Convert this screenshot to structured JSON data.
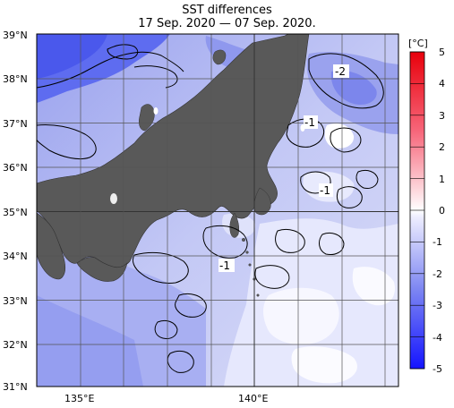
{
  "title": {
    "line1": "SST differences",
    "line2": "17 Sep. 2020 — 07 Sep. 2020."
  },
  "axes": {
    "lat_labels": [
      "39°N",
      "38°N",
      "37°N",
      "36°N",
      "35°N",
      "34°N",
      "33°N",
      "32°N",
      "31°N"
    ],
    "lon_labels": [
      "135°E",
      "140°E"
    ],
    "lat_range": [
      31,
      39
    ],
    "lon_range": [
      133.8,
      144.0
    ],
    "grid": true
  },
  "contour_labels": [
    "-2",
    "-1",
    "-1",
    "-1"
  ],
  "colorbar": {
    "unit": "[°C]",
    "ticks": [
      "5",
      "4",
      "3",
      "2",
      "1",
      "0",
      "-1",
      "-2",
      "-3",
      "-4",
      "-5"
    ],
    "range": [
      -5,
      5
    ],
    "colors": {
      "warm_max": "#e8000b",
      "warm_min": "#fff0f0",
      "cool_min": "#e8e8ff",
      "cool_max": "#1a1aff"
    }
  },
  "colors": {
    "land": "#5a5a5a",
    "sea_base": "#c7cbf5",
    "near_zero": "#f4f4ff",
    "cold_core": "#5a6af0"
  }
}
